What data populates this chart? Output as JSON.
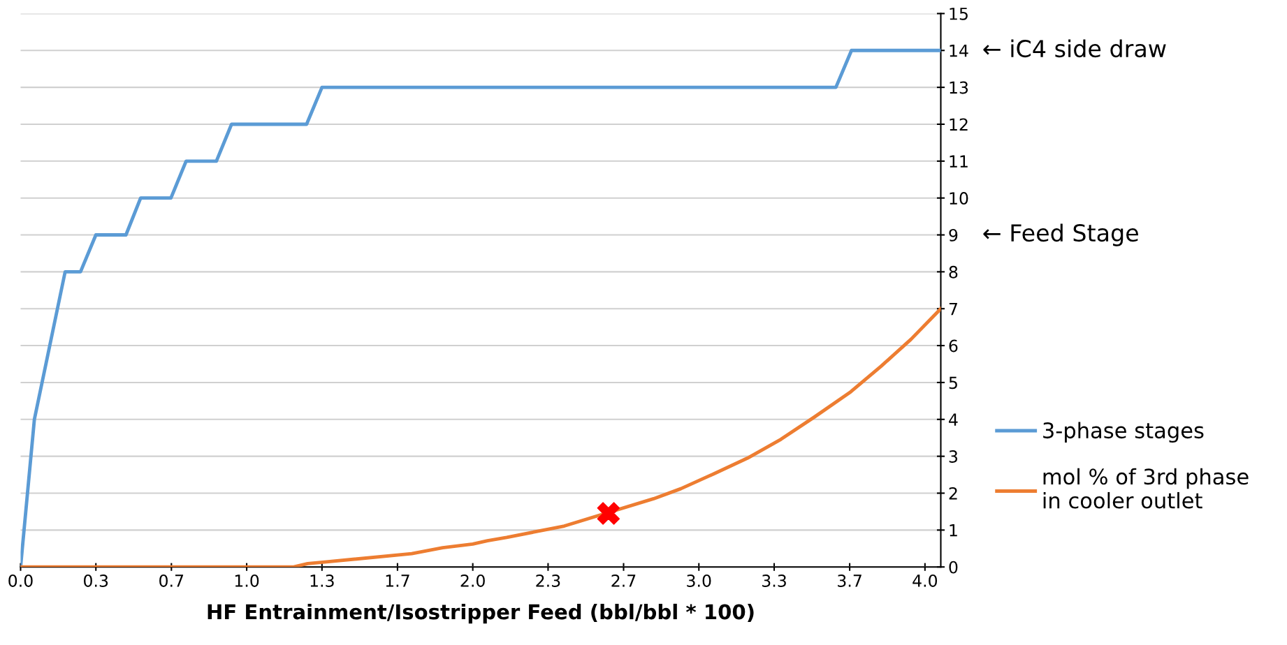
{
  "chart_data": {
    "type": "line",
    "xlabel": "HF Entrainment/Isostripper Feed (bbl/bbl * 100)",
    "xlim": [
      0,
      4.07
    ],
    "xticks": [
      {
        "value": 0,
        "label": "0.0"
      },
      {
        "value": 0.333,
        "label": "0.3"
      },
      {
        "value": 0.667,
        "label": "0.7"
      },
      {
        "value": 1,
        "label": "1.0"
      },
      {
        "value": 1.333,
        "label": "1.3"
      },
      {
        "value": 1.667,
        "label": "1.7"
      },
      {
        "value": 2,
        "label": "2.0"
      },
      {
        "value": 2.333,
        "label": "2.3"
      },
      {
        "value": 2.667,
        "label": "2.7"
      },
      {
        "value": 3,
        "label": "3.0"
      },
      {
        "value": 3.333,
        "label": "3.3"
      },
      {
        "value": 3.667,
        "label": "3.7"
      },
      {
        "value": 4,
        "label": "4.0"
      }
    ],
    "ylim": [
      0,
      15
    ],
    "yticks": [
      0,
      1,
      2,
      3,
      4,
      5,
      6,
      7,
      8,
      9,
      10,
      11,
      12,
      13,
      14,
      15
    ],
    "grid": "y",
    "legend": "right",
    "marker": "none",
    "line_style": "solid",
    "series": [
      {
        "name": "3-phase stages",
        "color": "#5b9bd5",
        "x": [
          0,
          0.061,
          0.197,
          0.265,
          0.333,
          0.466,
          0.531,
          0.665,
          0.732,
          0.866,
          0.933,
          1.265,
          1.333,
          3.606,
          3.675,
          4.07
        ],
        "values": [
          0,
          4,
          8,
          8,
          9,
          9,
          10,
          10,
          11,
          11,
          12,
          12,
          13,
          13,
          14,
          14
        ]
      },
      {
        "name": "mol % of 3rd phase\nin cooler outlet",
        "color": "#ed7d31",
        "x": [
          0,
          1.208,
          1.27,
          1.337,
          1.73,
          1.867,
          2.0,
          2.065,
          2.15,
          2.33,
          2.405,
          2.8,
          2.92,
          3.068,
          3.215,
          3.363,
          3.51,
          3.672,
          3.806,
          3.938,
          4.07
        ],
        "values": [
          0,
          0,
          0.09,
          0.13,
          0.36,
          0.52,
          0.62,
          0.71,
          0.8,
          1.02,
          1.11,
          1.85,
          2.12,
          2.53,
          2.95,
          3.46,
          4.06,
          4.75,
          5.44,
          6.17,
          7.0
        ]
      },
      {
        "type": "scatter",
        "color": "#ff0000",
        "marker": "cross",
        "x": [
          2.6
        ],
        "values": [
          1.45
        ]
      }
    ],
    "annotations": [
      "← iC4 side draw",
      "← Feed Stage"
    ]
  }
}
